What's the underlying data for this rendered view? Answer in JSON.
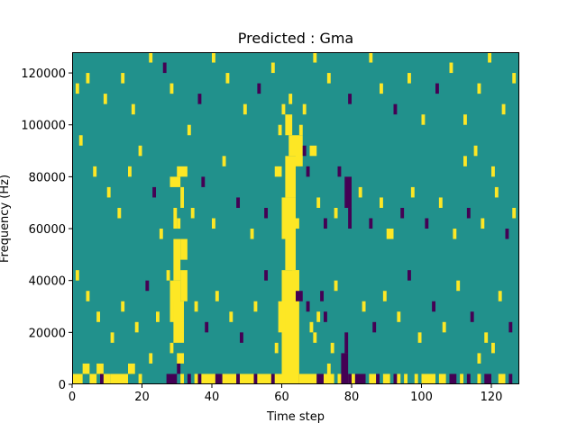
{
  "chart_data": {
    "type": "heatmap",
    "title": "Predicted : Gma",
    "xlabel": "Time step",
    "ylabel": "Frequency (Hz)",
    "xlim": [
      0,
      128
    ],
    "ylim": [
      0,
      128000
    ],
    "x_ticks": [
      0,
      20,
      40,
      60,
      80,
      100,
      120
    ],
    "x_tick_labels": [
      "0",
      "20",
      "40",
      "60",
      "80",
      "100",
      "120"
    ],
    "y_ticks": [
      0,
      20000,
      40000,
      60000,
      80000,
      100000,
      120000
    ],
    "y_tick_labels": [
      "0",
      "20000",
      "40000",
      "60000",
      "80000",
      "100000",
      "120000"
    ],
    "grid": false,
    "legend": "none",
    "colors": {
      "background": "#21918c",
      "low": "#440154",
      "high": "#fde725"
    },
    "value_levels": {
      "low": -1,
      "mid": 0,
      "high": 1
    },
    "rows": 128,
    "cols": 128,
    "cells_format": "[time_step_start, time_step_end, frequency_hz_start, frequency_hz_end, value]",
    "cells": [
      [
        0,
        3,
        0,
        4000,
        1
      ],
      [
        3,
        5,
        4000,
        8000,
        1
      ],
      [
        5,
        7,
        0,
        4000,
        1
      ],
      [
        7,
        9,
        4000,
        8000,
        1
      ],
      [
        8,
        9,
        0,
        4000,
        -1
      ],
      [
        9,
        11,
        0,
        4000,
        1
      ],
      [
        11,
        16,
        0,
        4000,
        1
      ],
      [
        16,
        18,
        4000,
        8000,
        1
      ],
      [
        19,
        20,
        0,
        4000,
        1
      ],
      [
        22,
        23,
        8000,
        12000,
        1
      ],
      [
        27,
        30,
        0,
        4000,
        -1
      ],
      [
        30,
        31,
        4000,
        8000,
        -1
      ],
      [
        31,
        32,
        0,
        4000,
        1
      ],
      [
        33,
        34,
        0,
        4000,
        -1
      ],
      [
        35,
        36,
        0,
        4000,
        1
      ],
      [
        36,
        37,
        0,
        4000,
        -1
      ],
      [
        37,
        41,
        0,
        4000,
        1
      ],
      [
        41,
        43,
        0,
        4000,
        -1
      ],
      [
        43,
        47,
        0,
        4000,
        1
      ],
      [
        47,
        48,
        0,
        4000,
        -1
      ],
      [
        48,
        52,
        0,
        4000,
        1
      ],
      [
        52,
        53,
        0,
        4000,
        -1
      ],
      [
        53,
        57,
        0,
        4000,
        1
      ],
      [
        57,
        58,
        0,
        4000,
        -1
      ],
      [
        58,
        62,
        0,
        4000,
        1
      ],
      [
        62,
        65,
        0,
        4000,
        -1
      ],
      [
        65,
        70,
        0,
        4000,
        1
      ],
      [
        70,
        72,
        0,
        4000,
        -1
      ],
      [
        72,
        75,
        0,
        4000,
        1
      ],
      [
        76,
        79,
        0,
        4000,
        1
      ],
      [
        79,
        80,
        0,
        4000,
        -1
      ],
      [
        80,
        81,
        0,
        4000,
        1
      ],
      [
        81,
        84,
        0,
        4000,
        -1
      ],
      [
        85,
        87,
        0,
        4000,
        1
      ],
      [
        87,
        88,
        0,
        4000,
        -1
      ],
      [
        89,
        91,
        0,
        4000,
        1
      ],
      [
        92,
        93,
        0,
        4000,
        -1
      ],
      [
        93,
        94,
        0,
        4000,
        1
      ],
      [
        95,
        96,
        0,
        4000,
        1
      ],
      [
        98,
        99,
        0,
        4000,
        1
      ],
      [
        100,
        104,
        0,
        4000,
        1
      ],
      [
        105,
        107,
        0,
        4000,
        1
      ],
      [
        108,
        110,
        0,
        4000,
        -1
      ],
      [
        111,
        112,
        0,
        4000,
        1
      ],
      [
        113,
        114,
        0,
        4000,
        -1
      ],
      [
        116,
        117,
        0,
        4000,
        1
      ],
      [
        118,
        120,
        0,
        4000,
        -1
      ],
      [
        122,
        124,
        0,
        4000,
        1
      ],
      [
        125,
        126,
        0,
        4000,
        -1
      ],
      [
        28,
        31,
        24000,
        40000,
        1
      ],
      [
        29,
        31,
        40000,
        56000,
        1
      ],
      [
        29,
        32,
        16000,
        32000,
        1
      ],
      [
        31,
        33,
        48000,
        56000,
        1
      ],
      [
        31,
        33,
        32000,
        44000,
        1
      ],
      [
        30,
        32,
        8000,
        12000,
        1
      ],
      [
        28,
        31,
        76000,
        80000,
        1
      ],
      [
        30,
        33,
        80000,
        84000,
        1
      ],
      [
        31,
        32,
        68000,
        76000,
        1
      ],
      [
        29,
        30,
        60000,
        68000,
        1
      ],
      [
        28,
        29,
        12000,
        16000,
        1
      ],
      [
        27,
        28,
        40000,
        44000,
        1
      ],
      [
        30,
        31,
        60000,
        64000,
        1
      ],
      [
        31,
        32,
        20000,
        24000,
        1
      ],
      [
        60,
        65,
        0,
        44000,
        1
      ],
      [
        61,
        64,
        44000,
        60000,
        1
      ],
      [
        60,
        64,
        56000,
        72000,
        1
      ],
      [
        61,
        64,
        72000,
        88000,
        1
      ],
      [
        62,
        64,
        88000,
        96000,
        1
      ],
      [
        61,
        63,
        96000,
        104000,
        1
      ],
      [
        60,
        61,
        104000,
        108000,
        1
      ],
      [
        62,
        63,
        108000,
        112000,
        1
      ],
      [
        59,
        61,
        20000,
        32000,
        1
      ],
      [
        58,
        60,
        80000,
        84000,
        1
      ],
      [
        63,
        65,
        36000,
        44000,
        1
      ],
      [
        64,
        65,
        60000,
        64000,
        1
      ],
      [
        58,
        59,
        12000,
        16000,
        1
      ],
      [
        59,
        60,
        96000,
        100000,
        1
      ],
      [
        77,
        79,
        0,
        12000,
        -1
      ],
      [
        78,
        79,
        12000,
        20000,
        -1
      ],
      [
        78,
        80,
        68000,
        80000,
        -1
      ],
      [
        79,
        80,
        60000,
        68000,
        -1
      ],
      [
        76,
        77,
        80000,
        84000,
        -1
      ],
      [
        68,
        70,
        88000,
        92000,
        1
      ],
      [
        64,
        66,
        84000,
        96000,
        1
      ],
      [
        65,
        66,
        96000,
        100000,
        1
      ],
      [
        66,
        67,
        88000,
        92000,
        -1
      ],
      [
        67,
        68,
        80000,
        84000,
        -1
      ],
      [
        64,
        66,
        32000,
        36000,
        -1
      ],
      [
        67,
        68,
        28000,
        32000,
        -1
      ],
      [
        68,
        69,
        20000,
        24000,
        1
      ],
      [
        66,
        67,
        104000,
        108000,
        1
      ],
      [
        70,
        71,
        24000,
        28000,
        1
      ],
      [
        71,
        72,
        32000,
        36000,
        -1
      ],
      [
        73,
        74,
        4000,
        8000,
        1
      ],
      [
        74,
        75,
        12000,
        16000,
        1
      ],
      [
        1,
        2,
        112000,
        116000,
        1
      ],
      [
        4,
        5,
        116000,
        120000,
        1
      ],
      [
        9,
        10,
        108000,
        112000,
        1
      ],
      [
        14,
        15,
        116000,
        120000,
        1
      ],
      [
        17,
        18,
        104000,
        108000,
        1
      ],
      [
        22,
        23,
        124000,
        128000,
        1
      ],
      [
        26,
        27,
        120000,
        124000,
        -1
      ],
      [
        28,
        29,
        112000,
        116000,
        1
      ],
      [
        33,
        34,
        96000,
        100000,
        1
      ],
      [
        36,
        37,
        108000,
        112000,
        -1
      ],
      [
        40,
        41,
        124000,
        128000,
        1
      ],
      [
        44,
        45,
        116000,
        120000,
        1
      ],
      [
        49,
        50,
        104000,
        108000,
        1
      ],
      [
        53,
        54,
        112000,
        116000,
        -1
      ],
      [
        57,
        58,
        120000,
        124000,
        1
      ],
      [
        69,
        70,
        124000,
        128000,
        1
      ],
      [
        73,
        74,
        116000,
        120000,
        1
      ],
      [
        79,
        80,
        108000,
        112000,
        -1
      ],
      [
        85,
        86,
        124000,
        128000,
        1
      ],
      [
        88,
        89,
        112000,
        116000,
        1
      ],
      [
        92,
        93,
        104000,
        108000,
        -1
      ],
      [
        96,
        97,
        116000,
        120000,
        1
      ],
      [
        100,
        101,
        100000,
        104000,
        1
      ],
      [
        104,
        105,
        112000,
        116000,
        -1
      ],
      [
        108,
        109,
        120000,
        124000,
        1
      ],
      [
        112,
        113,
        100000,
        104000,
        1
      ],
      [
        116,
        117,
        112000,
        116000,
        1
      ],
      [
        119,
        120,
        124000,
        128000,
        1
      ],
      [
        123,
        124,
        104000,
        108000,
        1
      ],
      [
        126,
        127,
        116000,
        120000,
        1
      ],
      [
        2,
        3,
        92000,
        96000,
        1
      ],
      [
        6,
        7,
        80000,
        84000,
        1
      ],
      [
        10,
        11,
        72000,
        76000,
        1
      ],
      [
        13,
        14,
        64000,
        68000,
        1
      ],
      [
        16,
        17,
        80000,
        84000,
        1
      ],
      [
        19,
        20,
        88000,
        92000,
        1
      ],
      [
        23,
        24,
        72000,
        76000,
        -1
      ],
      [
        25,
        26,
        56000,
        60000,
        1
      ],
      [
        34,
        35,
        64000,
        68000,
        1
      ],
      [
        37,
        38,
        76000,
        80000,
        -1
      ],
      [
        40,
        41,
        60000,
        64000,
        1
      ],
      [
        43,
        44,
        84000,
        88000,
        1
      ],
      [
        47,
        48,
        68000,
        72000,
        -1
      ],
      [
        51,
        52,
        56000,
        60000,
        1
      ],
      [
        55,
        56,
        64000,
        68000,
        -1
      ],
      [
        70,
        71,
        68000,
        72000,
        1
      ],
      [
        72,
        73,
        60000,
        64000,
        -1
      ],
      [
        75,
        76,
        64000,
        68000,
        1
      ],
      [
        82,
        83,
        72000,
        76000,
        1
      ],
      [
        85,
        86,
        60000,
        64000,
        -1
      ],
      [
        88,
        89,
        68000,
        72000,
        1
      ],
      [
        90,
        92,
        56000,
        60000,
        1
      ],
      [
        94,
        95,
        64000,
        68000,
        -1
      ],
      [
        97,
        98,
        72000,
        76000,
        1
      ],
      [
        101,
        102,
        60000,
        64000,
        -1
      ],
      [
        105,
        106,
        68000,
        72000,
        1
      ],
      [
        109,
        110,
        56000,
        60000,
        1
      ],
      [
        113,
        114,
        64000,
        68000,
        -1
      ],
      [
        117,
        118,
        60000,
        64000,
        1
      ],
      [
        121,
        122,
        72000,
        76000,
        1
      ],
      [
        124,
        125,
        56000,
        60000,
        -1
      ],
      [
        126,
        127,
        64000,
        68000,
        1
      ],
      [
        112,
        113,
        84000,
        88000,
        1
      ],
      [
        115,
        116,
        88000,
        92000,
        1
      ],
      [
        120,
        121,
        80000,
        84000,
        1
      ],
      [
        1,
        2,
        40000,
        44000,
        1
      ],
      [
        4,
        5,
        32000,
        36000,
        1
      ],
      [
        7,
        8,
        24000,
        28000,
        1
      ],
      [
        11,
        12,
        16000,
        20000,
        1
      ],
      [
        14,
        15,
        28000,
        32000,
        1
      ],
      [
        18,
        19,
        20000,
        24000,
        1
      ],
      [
        21,
        22,
        36000,
        40000,
        -1
      ],
      [
        24,
        25,
        24000,
        28000,
        1
      ],
      [
        35,
        36,
        28000,
        32000,
        1
      ],
      [
        38,
        39,
        20000,
        24000,
        -1
      ],
      [
        41,
        42,
        32000,
        36000,
        1
      ],
      [
        45,
        46,
        24000,
        28000,
        1
      ],
      [
        48,
        49,
        16000,
        20000,
        -1
      ],
      [
        52,
        53,
        28000,
        32000,
        1
      ],
      [
        55,
        56,
        40000,
        44000,
        -1
      ],
      [
        69,
        70,
        16000,
        20000,
        1
      ],
      [
        72,
        73,
        24000,
        28000,
        -1
      ],
      [
        75,
        76,
        36000,
        40000,
        1
      ],
      [
        83,
        84,
        28000,
        32000,
        1
      ],
      [
        86,
        87,
        20000,
        24000,
        -1
      ],
      [
        89,
        90,
        32000,
        36000,
        1
      ],
      [
        93,
        94,
        24000,
        28000,
        1
      ],
      [
        96,
        97,
        40000,
        44000,
        -1
      ],
      [
        99,
        100,
        16000,
        20000,
        1
      ],
      [
        103,
        104,
        28000,
        32000,
        -1
      ],
      [
        106,
        107,
        20000,
        24000,
        1
      ],
      [
        110,
        111,
        36000,
        40000,
        1
      ],
      [
        114,
        115,
        24000,
        28000,
        -1
      ],
      [
        118,
        119,
        16000,
        20000,
        1
      ],
      [
        122,
        123,
        32000,
        36000,
        1
      ],
      [
        125,
        126,
        20000,
        24000,
        -1
      ],
      [
        120,
        121,
        12000,
        16000,
        1
      ],
      [
        116,
        117,
        8000,
        12000,
        1
      ]
    ]
  }
}
